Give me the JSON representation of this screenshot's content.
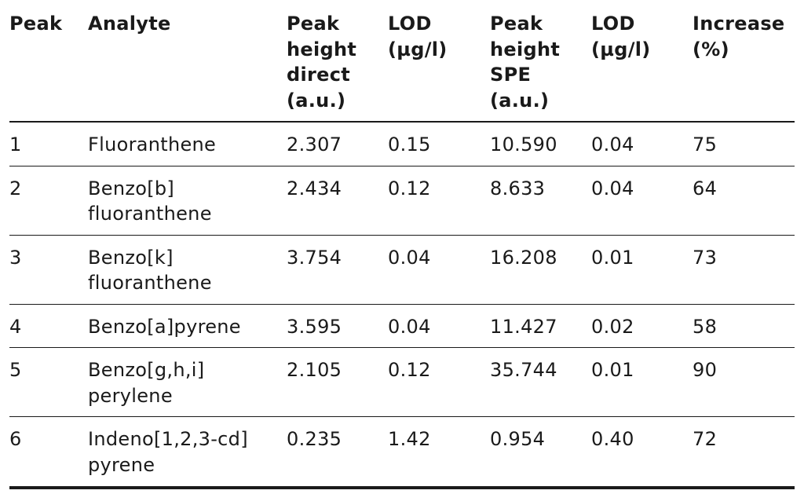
{
  "table": {
    "headers": [
      "Peak",
      "Analyte",
      "Peak height direct (a.u.)",
      "LOD (µg/l)",
      "Peak height SPE (a.u.)",
      "LOD (µg/l)",
      "Increase (%)"
    ],
    "rows": [
      [
        "1",
        "Fluoranthene",
        "2.307",
        "0.15",
        "10.590",
        "0.04",
        "75"
      ],
      [
        "2",
        "Benzo[b] fluoranthene",
        "2.434",
        "0.12",
        "8.633",
        "0.04",
        "64"
      ],
      [
        "3",
        "Benzo[k] fluoranthene",
        "3.754",
        "0.04",
        "16.208",
        "0.01",
        "73"
      ],
      [
        "4",
        "Benzo[a]pyrene",
        "3.595",
        "0.04",
        "11.427",
        "0.02",
        "58"
      ],
      [
        "5",
        "Benzo[g,h,i] perylene",
        "2.105",
        "0.12",
        "35.744",
        "0.01",
        "90"
      ],
      [
        "6",
        "Indeno[1,2,3-cd] pyrene",
        "0.235",
        "1.42",
        "0.954",
        "0.40",
        "72"
      ]
    ]
  }
}
